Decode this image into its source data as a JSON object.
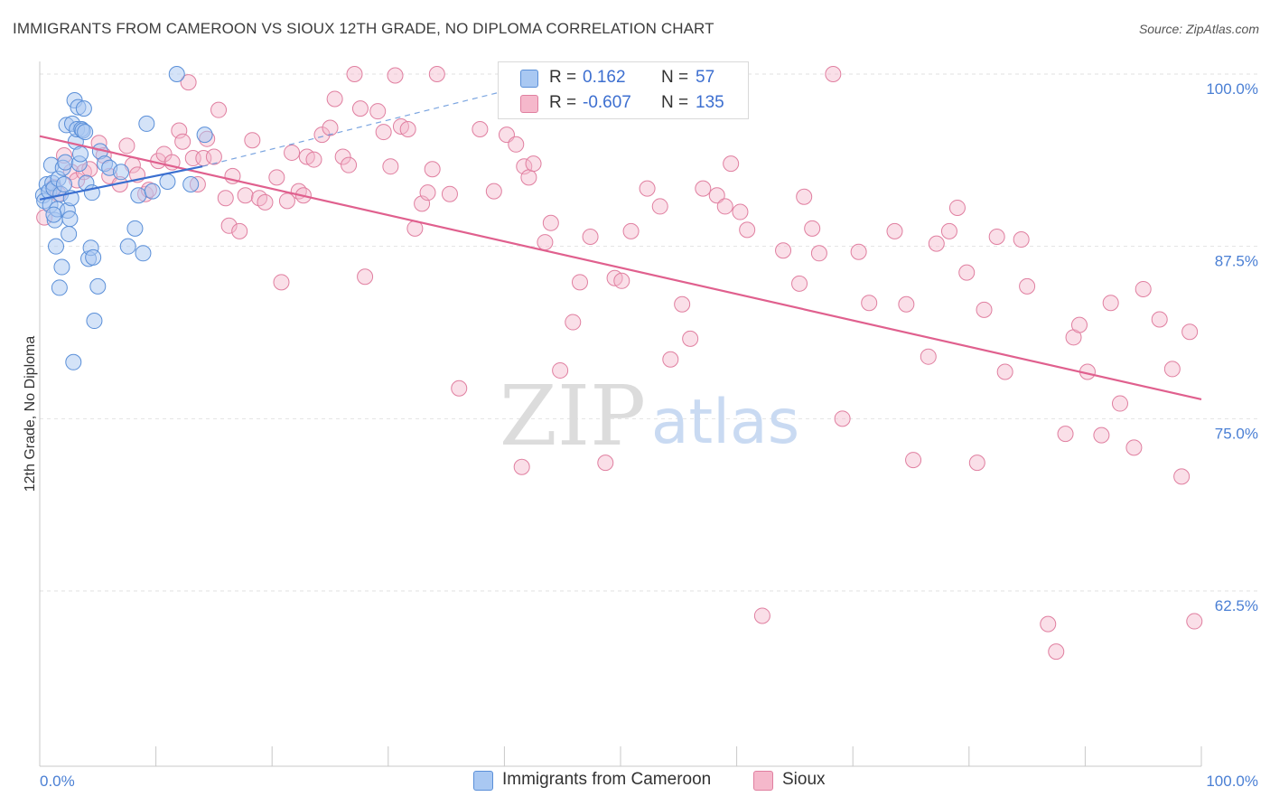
{
  "title": "IMMIGRANTS FROM CAMEROON VS SIOUX 12TH GRADE, NO DIPLOMA CORRELATION CHART",
  "source": "Source: ZipAtlas.com",
  "watermark": {
    "zip": "ZIP",
    "atlas": "atlas"
  },
  "colors": {
    "blue_fill": "#a9c8f2",
    "blue_stroke": "#5a8fd8",
    "blue_line": "#3a6fd0",
    "pink_fill": "#f5b8cb",
    "pink_stroke": "#e07fa0",
    "pink_line": "#e0608e",
    "tick_text": "#4a7fd4",
    "grid": "#e2e2e2"
  },
  "legend": {
    "rows": [
      {
        "r_label": "R =",
        "r_value": "0.162",
        "n_label": "N =",
        "n_value": "57"
      },
      {
        "r_label": "R =",
        "r_value": "-0.607",
        "n_label": "N =",
        "n_value": "135"
      }
    ]
  },
  "bottom_legend": [
    "Immigrants from Cameroon",
    "Sioux"
  ],
  "chart_data": {
    "type": "scatter",
    "title": "IMMIGRANTS FROM CAMEROON VS SIOUX 12TH GRADE, NO DIPLOMA CORRELATION CHART",
    "xlabel": "",
    "ylabel": "12th Grade, No Diploma",
    "xlim": [
      0,
      100
    ],
    "ylim": [
      52.5,
      101.5
    ],
    "x_tick_labels": {
      "left": "0.0%",
      "right": "100.0%"
    },
    "y_ticks": [
      100,
      87.5,
      75,
      62.5
    ],
    "y_tick_labels": [
      "100.0%",
      "87.5%",
      "75.0%",
      "62.5%"
    ],
    "grid": "horizontal dashed",
    "legend_placement": "top-center",
    "series": [
      {
        "name": "Immigrants from Cameroon",
        "color": "#a9c8f2",
        "r": 0.162,
        "n": 57,
        "trend": {
          "x": [
            0,
            14
          ],
          "y": [
            90.9,
            93.3
          ]
        },
        "trend_dashed": {
          "x": [
            14,
            43
          ],
          "y": [
            93.3,
            99.4
          ]
        },
        "points": [
          [
            0.3,
            91.2
          ],
          [
            0.4,
            90.8
          ],
          [
            0.6,
            92.0
          ],
          [
            0.8,
            91.5
          ],
          [
            0.9,
            90.5
          ],
          [
            1.0,
            93.4
          ],
          [
            1.1,
            92.1
          ],
          [
            1.2,
            91.7
          ],
          [
            1.3,
            89.4
          ],
          [
            1.4,
            87.5
          ],
          [
            1.5,
            90.2
          ],
          [
            1.6,
            92.4
          ],
          [
            1.7,
            84.5
          ],
          [
            1.8,
            91.3
          ],
          [
            1.9,
            86.0
          ],
          [
            2.0,
            93.2
          ],
          [
            2.1,
            92.0
          ],
          [
            2.2,
            93.6
          ],
          [
            2.3,
            96.3
          ],
          [
            2.4,
            90.1
          ],
          [
            2.5,
            88.4
          ],
          [
            2.6,
            89.5
          ],
          [
            2.8,
            96.4
          ],
          [
            2.9,
            79.1
          ],
          [
            3.0,
            98.1
          ],
          [
            3.1,
            95.1
          ],
          [
            3.2,
            96.0
          ],
          [
            3.3,
            97.6
          ],
          [
            3.4,
            93.5
          ],
          [
            3.5,
            94.2
          ],
          [
            3.6,
            96.0
          ],
          [
            3.7,
            95.9
          ],
          [
            3.8,
            97.5
          ],
          [
            3.9,
            95.8
          ],
          [
            4.0,
            92.1
          ],
          [
            4.2,
            86.6
          ],
          [
            4.4,
            87.4
          ],
          [
            4.5,
            91.4
          ],
          [
            4.6,
            86.7
          ],
          [
            4.7,
            82.1
          ],
          [
            5.0,
            84.6
          ],
          [
            5.2,
            94.4
          ],
          [
            5.6,
            93.5
          ],
          [
            6.0,
            93.2
          ],
          [
            7.0,
            92.9
          ],
          [
            7.6,
            87.5
          ],
          [
            8.2,
            88.8
          ],
          [
            8.5,
            91.2
          ],
          [
            8.9,
            87.0
          ],
          [
            9.2,
            96.4
          ],
          [
            9.7,
            91.5
          ],
          [
            11.0,
            92.2
          ],
          [
            11.8,
            100.0
          ],
          [
            13.0,
            92.0
          ],
          [
            14.2,
            95.6
          ],
          [
            1.2,
            89.8
          ],
          [
            2.7,
            91.0
          ]
        ]
      },
      {
        "name": "Sioux",
        "color": "#f5b8cb",
        "r": -0.607,
        "n": 135,
        "trend": {
          "x": [
            0,
            100
          ],
          "y": [
            95.5,
            76.4
          ]
        },
        "points": [
          [
            0.4,
            89.6
          ],
          [
            1.2,
            91.8
          ],
          [
            1.6,
            91.3
          ],
          [
            2.1,
            94.1
          ],
          [
            2.7,
            92.9
          ],
          [
            3.2,
            92.3
          ],
          [
            3.8,
            92.9
          ],
          [
            4.3,
            93.1
          ],
          [
            5.1,
            95.0
          ],
          [
            5.5,
            94.1
          ],
          [
            6.0,
            92.6
          ],
          [
            6.9,
            92.0
          ],
          [
            7.5,
            94.8
          ],
          [
            8.0,
            93.4
          ],
          [
            8.4,
            92.7
          ],
          [
            9.1,
            91.3
          ],
          [
            9.4,
            91.6
          ],
          [
            10.2,
            93.7
          ],
          [
            10.7,
            94.2
          ],
          [
            11.4,
            93.6
          ],
          [
            12.0,
            95.9
          ],
          [
            12.3,
            95.1
          ],
          [
            12.8,
            99.4
          ],
          [
            13.2,
            93.9
          ],
          [
            13.6,
            92.0
          ],
          [
            14.1,
            93.9
          ],
          [
            14.4,
            95.3
          ],
          [
            15.0,
            94.0
          ],
          [
            15.4,
            97.4
          ],
          [
            16.0,
            91.0
          ],
          [
            16.3,
            89.0
          ],
          [
            16.6,
            92.6
          ],
          [
            17.2,
            88.6
          ],
          [
            17.7,
            91.2
          ],
          [
            18.3,
            95.2
          ],
          [
            18.9,
            91.0
          ],
          [
            19.4,
            90.7
          ],
          [
            20.4,
            92.5
          ],
          [
            20.8,
            84.9
          ],
          [
            21.3,
            90.8
          ],
          [
            21.7,
            94.3
          ],
          [
            22.3,
            91.5
          ],
          [
            22.7,
            91.2
          ],
          [
            23.0,
            94.0
          ],
          [
            23.6,
            93.8
          ],
          [
            24.3,
            95.6
          ],
          [
            25.0,
            96.1
          ],
          [
            25.4,
            98.2
          ],
          [
            26.1,
            94.0
          ],
          [
            26.6,
            93.4
          ],
          [
            27.1,
            100.0
          ],
          [
            27.6,
            97.5
          ],
          [
            28.0,
            85.3
          ],
          [
            29.1,
            97.3
          ],
          [
            29.6,
            95.8
          ],
          [
            30.2,
            93.3
          ],
          [
            30.6,
            99.9
          ],
          [
            31.1,
            96.2
          ],
          [
            31.7,
            96.0
          ],
          [
            32.3,
            88.8
          ],
          [
            32.9,
            90.6
          ],
          [
            33.4,
            91.4
          ],
          [
            34.2,
            100.0
          ],
          [
            35.3,
            91.3
          ],
          [
            36.1,
            77.2
          ],
          [
            37.9,
            96.0
          ],
          [
            39.1,
            91.5
          ],
          [
            40.2,
            95.6
          ],
          [
            41.0,
            94.9
          ],
          [
            41.7,
            93.3
          ],
          [
            42.1,
            92.5
          ],
          [
            42.5,
            93.5
          ],
          [
            43.5,
            87.8
          ],
          [
            44.0,
            89.2
          ],
          [
            44.8,
            78.5
          ],
          [
            45.9,
            82.0
          ],
          [
            46.5,
            84.9
          ],
          [
            47.4,
            88.2
          ],
          [
            48.7,
            71.8
          ],
          [
            49.5,
            85.2
          ],
          [
            50.1,
            85.0
          ],
          [
            50.9,
            88.6
          ],
          [
            52.3,
            91.7
          ],
          [
            53.4,
            90.4
          ],
          [
            54.3,
            79.3
          ],
          [
            55.3,
            83.3
          ],
          [
            56.0,
            80.8
          ],
          [
            57.1,
            91.7
          ],
          [
            58.3,
            91.2
          ],
          [
            59.0,
            90.4
          ],
          [
            60.3,
            90.0
          ],
          [
            60.9,
            88.7
          ],
          [
            62.2,
            60.7
          ],
          [
            64.0,
            87.2
          ],
          [
            65.4,
            84.8
          ],
          [
            65.8,
            91.1
          ],
          [
            66.5,
            88.8
          ],
          [
            67.1,
            87.0
          ],
          [
            68.3,
            100.0
          ],
          [
            69.1,
            75.0
          ],
          [
            70.5,
            87.1
          ],
          [
            71.4,
            83.4
          ],
          [
            73.6,
            88.6
          ],
          [
            74.6,
            83.3
          ],
          [
            75.2,
            72.0
          ],
          [
            76.5,
            79.5
          ],
          [
            77.2,
            87.7
          ],
          [
            78.3,
            88.6
          ],
          [
            79.0,
            90.3
          ],
          [
            79.8,
            85.6
          ],
          [
            80.7,
            71.8
          ],
          [
            81.3,
            82.9
          ],
          [
            82.4,
            88.2
          ],
          [
            83.1,
            78.4
          ],
          [
            84.5,
            88.0
          ],
          [
            85.0,
            84.6
          ],
          [
            86.8,
            60.1
          ],
          [
            87.5,
            58.1
          ],
          [
            88.3,
            73.9
          ],
          [
            89.0,
            80.9
          ],
          [
            89.5,
            81.8
          ],
          [
            90.2,
            78.4
          ],
          [
            91.4,
            73.8
          ],
          [
            92.2,
            83.4
          ],
          [
            93.0,
            76.1
          ],
          [
            94.2,
            72.9
          ],
          [
            95.0,
            84.4
          ],
          [
            96.4,
            82.2
          ],
          [
            97.5,
            78.6
          ],
          [
            98.3,
            70.8
          ],
          [
            99.0,
            81.3
          ],
          [
            99.4,
            60.3
          ],
          [
            41.5,
            71.5
          ],
          [
            59.5,
            93.5
          ],
          [
            33.8,
            93.1
          ]
        ]
      }
    ]
  }
}
